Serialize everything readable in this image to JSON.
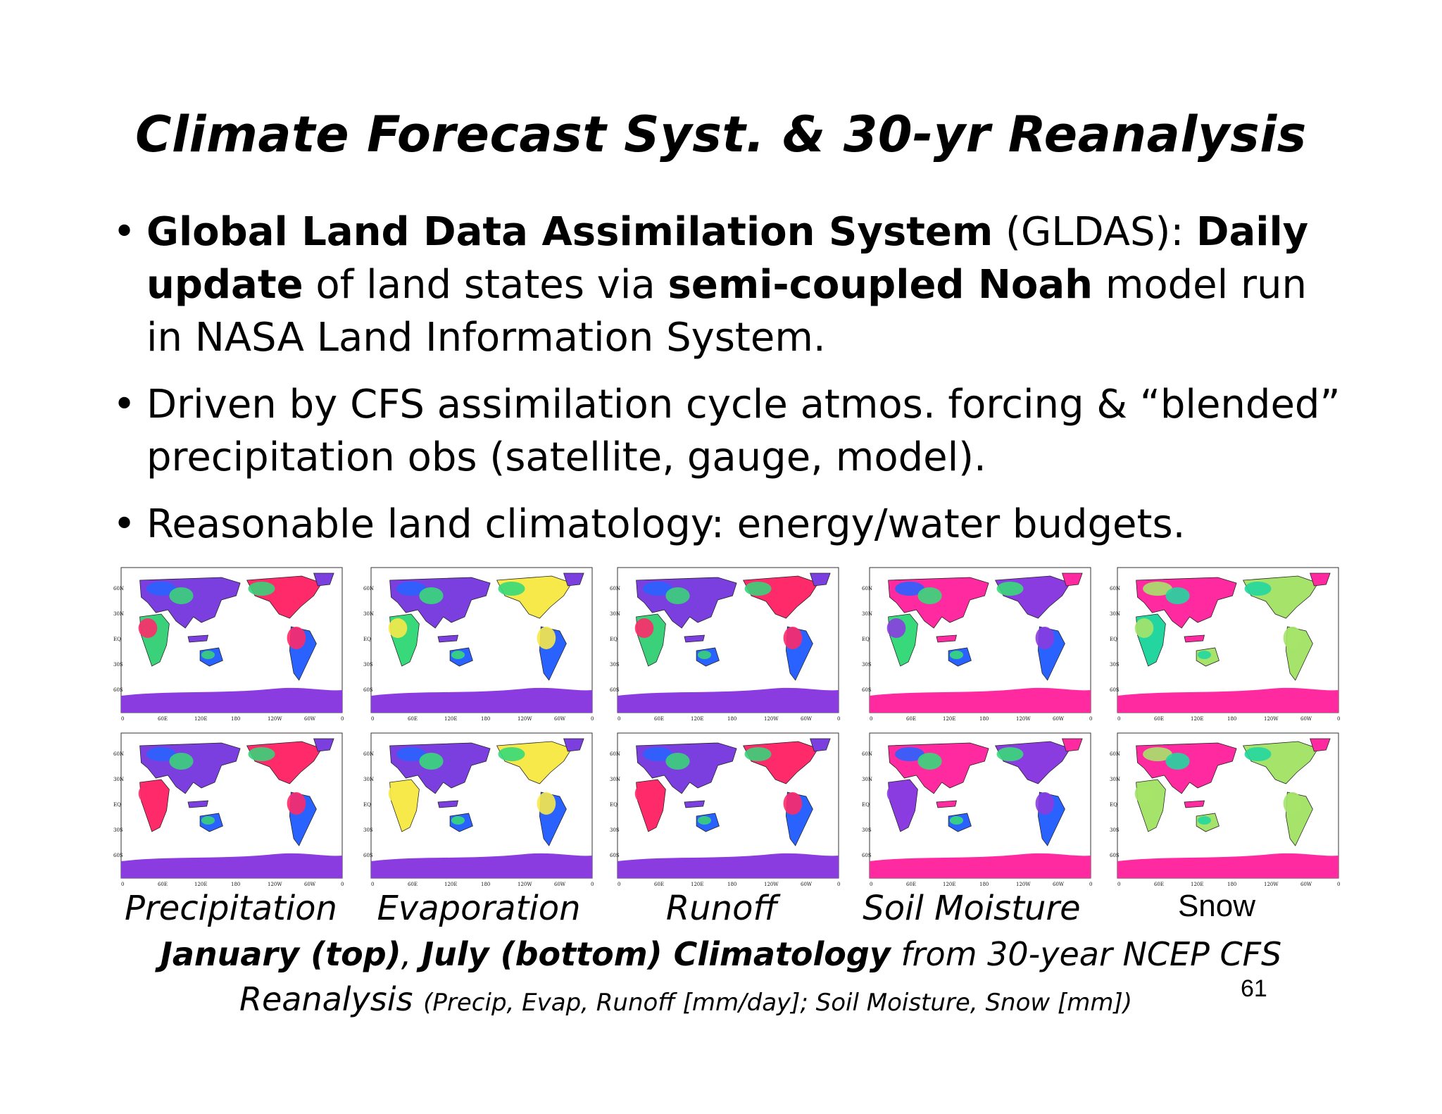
{
  "slide": {
    "title": "Climate Forecast Syst. & 30-yr Reanalysis",
    "bullet_char": "•",
    "bullets": [
      {
        "parts": [
          {
            "text": "Global Land Data Assimilation System",
            "bold": true
          },
          {
            "text": " (GLDAS): ",
            "bold": false
          },
          {
            "text": "Daily update",
            "bold": true
          },
          {
            "text": " of land states via ",
            "bold": false
          },
          {
            "text": "semi-coupled Noah",
            "bold": true
          },
          {
            "text": " model run in NASA Land Information System.",
            "bold": false
          }
        ]
      },
      {
        "text": " Driven by CFS assimilation cycle atmos. forcing & “blended” precipitation obs (satellite, gauge, model)."
      },
      {
        "text": " Reasonable land climatology: energy/water budgets."
      }
    ],
    "map_axis": {
      "lat_labels": [
        "60N",
        "30N",
        "EQ",
        "30S",
        "60S"
      ],
      "lon_labels": [
        "0",
        "60E",
        "120E",
        "180",
        "120W",
        "60W",
        "0"
      ]
    },
    "panels": [
      {
        "label": "Precipitation",
        "colors": {
          "ocean": "#ffffff",
          "land_a": "#7b3fe0",
          "land_b": "#2a62ff",
          "land_c": "#3ad17a",
          "land_d": "#ff2a6a",
          "ice": "#8a3ce0"
        }
      },
      {
        "label": "Evaporation",
        "colors": {
          "ocean": "#ffffff",
          "land_a": "#7b3fe0",
          "land_b": "#2a62ff",
          "land_c": "#37d97a",
          "land_d": "#f7e94a",
          "ice": "#8a3ce0"
        }
      },
      {
        "label": "Runoff",
        "colors": {
          "ocean": "#ffffff",
          "land_a": "#7b3fe0",
          "land_b": "#2a62ff",
          "land_c": "#3ad17a",
          "land_d": "#ff2a6a",
          "ice": "#8a3ce0"
        }
      },
      {
        "label": "Soil Moisture",
        "colors": {
          "ocean": "#ffffff",
          "land_a": "#ff2aa0",
          "land_b": "#2a62ff",
          "land_c": "#37d97a",
          "land_d": "#8a3ce0",
          "ice": "#ff2aa0"
        }
      },
      {
        "label": "Snow",
        "colors": {
          "ocean": "#ffffff",
          "land_a": "#ff2aa0",
          "land_b": "#a6e36a",
          "land_c": "#23d6a0",
          "land_d": "#a6e36a",
          "ice": "#ff2aa0"
        }
      }
    ],
    "footer": {
      "line1_bold": "January (top)",
      "line1_sep": ", ",
      "line1_bold2": "July (bottom) Climatology",
      "line1_rest": " from 30-year NCEP CFS",
      "line2_main": "Reanalysis ",
      "line2_small": "(Precip, Evap, Runoff [mm/day]; Soil Moisture, Snow [mm])"
    },
    "page_number": "61"
  }
}
